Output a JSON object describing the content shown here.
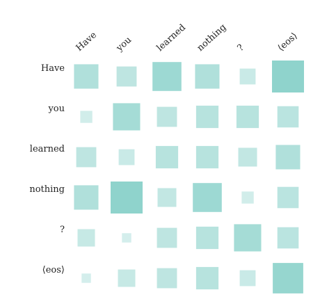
{
  "chart_data": {
    "type": "heatmap",
    "title": "",
    "xlabel": "",
    "ylabel": "",
    "x_categories": [
      "Have",
      "you",
      "learned",
      "nothing",
      "?",
      "⟨eos⟩"
    ],
    "y_categories": [
      "Have",
      "you",
      "learned",
      "nothing",
      "?",
      "⟨eos⟩"
    ],
    "values": [
      [
        0.55,
        0.35,
        0.8,
        0.55,
        0.2,
        1.0
      ],
      [
        0.1,
        0.7,
        0.35,
        0.45,
        0.45,
        0.4
      ],
      [
        0.35,
        0.2,
        0.45,
        0.45,
        0.3,
        0.55
      ],
      [
        0.55,
        1.0,
        0.3,
        0.8,
        0.1,
        0.4
      ],
      [
        0.25,
        0.05,
        0.35,
        0.45,
        0.7,
        0.4
      ],
      [
        0.05,
        0.25,
        0.35,
        0.45,
        0.2,
        0.9
      ]
    ],
    "cell_color": "#8fd3cc",
    "value_encoding": "square-size-and-opacity",
    "grid": false,
    "legend": "none"
  }
}
